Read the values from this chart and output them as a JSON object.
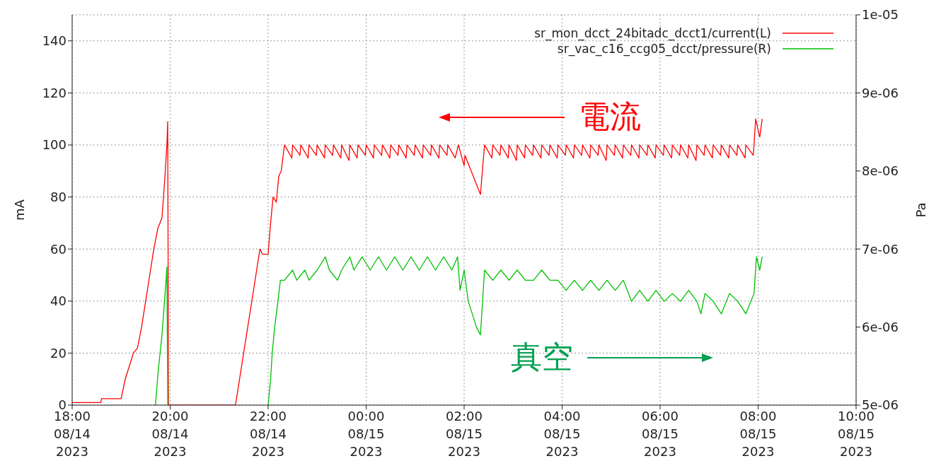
{
  "chart_data": {
    "type": "line",
    "xlabel": null,
    "ylabel": "mA",
    "y2label": "Pa",
    "annotations": [
      "電流",
      "真空"
    ],
    "xlim": [
      "2023-08-14T18:00",
      "2023-08-15T10:00"
    ],
    "xticks": [
      {
        "value": "2023-08-14T18:00",
        "label": "18:00\n08/14\n2023"
      },
      {
        "value": "2023-08-14T20:00",
        "label": "20:00\n08/14\n2023"
      },
      {
        "value": "2023-08-14T22:00",
        "label": "22:00\n08/14\n2023"
      },
      {
        "value": "2023-08-15T00:00",
        "label": "00:00\n08/15\n2023"
      },
      {
        "value": "2023-08-15T02:00",
        "label": "02:00\n08/15\n2023"
      },
      {
        "value": "2023-08-15T04:00",
        "label": "04:00\n08/15\n2023"
      },
      {
        "value": "2023-08-15T06:00",
        "label": "06:00\n08/15\n2023"
      },
      {
        "value": "2023-08-15T08:00",
        "label": "08:00\n08/15\n2023"
      },
      {
        "value": "2023-08-15T10:00",
        "label": "10:00\n08/15\n2023"
      }
    ],
    "ylim": [
      0,
      150
    ],
    "yticks": [
      0,
      20,
      40,
      60,
      80,
      100,
      120,
      140
    ],
    "y2lim": [
      5e-06,
      1e-05
    ],
    "y2ticks": [
      {
        "value": 5e-06,
        "label": "5e-06"
      },
      {
        "value": 6e-06,
        "label": "6e-06"
      },
      {
        "value": 7e-06,
        "label": "7e-06"
      },
      {
        "value": 8e-06,
        "label": "8e-06"
      },
      {
        "value": 9e-06,
        "label": "9e-06"
      },
      {
        "value": 1e-05,
        "label": "1e-05"
      }
    ],
    "grid": true,
    "legend": "top right",
    "marker": "none",
    "line_style": "solid",
    "series": [
      {
        "name": "sr_mon_dcct_24bitadc_dcct1/current(L)",
        "color": "#ff0000",
        "x": [
          "2023-08-14T18:00",
          "2023-08-14T18:35",
          "2023-08-14T18:36",
          "2023-08-14T19:00",
          "2023-08-14T19:05",
          "2023-08-14T19:10",
          "2023-08-14T19:15",
          "2023-08-14T19:20",
          "2023-08-14T19:25",
          "2023-08-14T19:30",
          "2023-08-14T19:35",
          "2023-08-14T19:40",
          "2023-08-14T19:45",
          "2023-08-14T19:50",
          "2023-08-14T19:53",
          "2023-08-14T19:56",
          "2023-08-14T19:57",
          "2023-08-14T19:58",
          "2023-08-14T21:20",
          "2023-08-14T21:25",
          "2023-08-14T21:30",
          "2023-08-14T21:35",
          "2023-08-14T21:40",
          "2023-08-14T21:45",
          "2023-08-14T21:50",
          "2023-08-14T21:53",
          "2023-08-14T22:00",
          "2023-08-14T22:03",
          "2023-08-14T22:06",
          "2023-08-14T22:10",
          "2023-08-14T22:13",
          "2023-08-14T22:16",
          "2023-08-14T22:20",
          "2023-08-14T22:29",
          "2023-08-14T22:30",
          "2023-08-14T22:39",
          "2023-08-14T22:40",
          "2023-08-14T22:49",
          "2023-08-14T22:50",
          "2023-08-14T22:59",
          "2023-08-14T23:00",
          "2023-08-14T23:09",
          "2023-08-14T23:10",
          "2023-08-14T23:19",
          "2023-08-14T23:20",
          "2023-08-14T23:29",
          "2023-08-14T23:30",
          "2023-08-14T23:39",
          "2023-08-14T23:40",
          "2023-08-14T23:49",
          "2023-08-14T23:50",
          "2023-08-14T23:59",
          "2023-08-15T00:00",
          "2023-08-15T00:09",
          "2023-08-15T00:10",
          "2023-08-15T00:19",
          "2023-08-15T00:20",
          "2023-08-15T00:29",
          "2023-08-15T00:30",
          "2023-08-15T00:39",
          "2023-08-15T00:40",
          "2023-08-15T00:49",
          "2023-08-15T00:50",
          "2023-08-15T00:59",
          "2023-08-15T01:00",
          "2023-08-15T01:09",
          "2023-08-15T01:10",
          "2023-08-15T01:19",
          "2023-08-15T01:20",
          "2023-08-15T01:29",
          "2023-08-15T01:30",
          "2023-08-15T01:39",
          "2023-08-15T01:40",
          "2023-08-15T01:49",
          "2023-08-15T01:53",
          "2023-08-15T02:00",
          "2023-08-15T02:01",
          "2023-08-15T02:20",
          "2023-08-15T02:25",
          "2023-08-15T02:34",
          "2023-08-15T02:35",
          "2023-08-15T02:44",
          "2023-08-15T02:45",
          "2023-08-15T02:54",
          "2023-08-15T02:55",
          "2023-08-15T03:04",
          "2023-08-15T03:05",
          "2023-08-15T03:14",
          "2023-08-15T03:15",
          "2023-08-15T03:24",
          "2023-08-15T03:25",
          "2023-08-15T03:34",
          "2023-08-15T03:35",
          "2023-08-15T03:44",
          "2023-08-15T03:45",
          "2023-08-15T03:54",
          "2023-08-15T03:55",
          "2023-08-15T04:04",
          "2023-08-15T04:05",
          "2023-08-15T04:14",
          "2023-08-15T04:15",
          "2023-08-15T04:24",
          "2023-08-15T04:25",
          "2023-08-15T04:34",
          "2023-08-15T04:35",
          "2023-08-15T04:44",
          "2023-08-15T04:45",
          "2023-08-15T04:54",
          "2023-08-15T04:55",
          "2023-08-15T05:04",
          "2023-08-15T05:05",
          "2023-08-15T05:14",
          "2023-08-15T05:15",
          "2023-08-15T05:24",
          "2023-08-15T05:25",
          "2023-08-15T05:34",
          "2023-08-15T05:35",
          "2023-08-15T05:44",
          "2023-08-15T05:45",
          "2023-08-15T05:54",
          "2023-08-15T05:55",
          "2023-08-15T06:04",
          "2023-08-15T06:05",
          "2023-08-15T06:14",
          "2023-08-15T06:15",
          "2023-08-15T06:24",
          "2023-08-15T06:25",
          "2023-08-15T06:34",
          "2023-08-15T06:35",
          "2023-08-15T06:44",
          "2023-08-15T06:45",
          "2023-08-15T06:54",
          "2023-08-15T06:55",
          "2023-08-15T07:04",
          "2023-08-15T07:05",
          "2023-08-15T07:14",
          "2023-08-15T07:15",
          "2023-08-15T07:24",
          "2023-08-15T07:25",
          "2023-08-15T07:34",
          "2023-08-15T07:35",
          "2023-08-15T07:44",
          "2023-08-15T07:45",
          "2023-08-15T07:54",
          "2023-08-15T07:55",
          "2023-08-15T07:57",
          "2023-08-15T08:02",
          "2023-08-15T08:05"
        ],
        "values": [
          1,
          1,
          2.5,
          2.5,
          10,
          15,
          20,
          22,
          30,
          40,
          50,
          60,
          68,
          72,
          85,
          100,
          109,
          0,
          0,
          10,
          20,
          30,
          40,
          50,
          60,
          58,
          58,
          70,
          80,
          78,
          88,
          90,
          100,
          95,
          100,
          96,
          100,
          95,
          100,
          96,
          100,
          95,
          100,
          96,
          100,
          95,
          100,
          94,
          100,
          95,
          100,
          96,
          100,
          95,
          100,
          96,
          100,
          95,
          100,
          96,
          100,
          95,
          100,
          96,
          100,
          95,
          100,
          96,
          100,
          95,
          100,
          96,
          100,
          95,
          100,
          92,
          96,
          81,
          100,
          95,
          100,
          96,
          100,
          95,
          100,
          94,
          100,
          95,
          100,
          96,
          100,
          95,
          100,
          96,
          100,
          95,
          100,
          96,
          100,
          95,
          100,
          96,
          100,
          95,
          100,
          96,
          100,
          94,
          100,
          96,
          100,
          95,
          100,
          96,
          100,
          95,
          100,
          96,
          100,
          95,
          100,
          96,
          100,
          95,
          100,
          96,
          100,
          95,
          100,
          94,
          100,
          96,
          100,
          95,
          100,
          96,
          100,
          95,
          100,
          96,
          100,
          95,
          100,
          96,
          100,
          110,
          103,
          110
        ]
      },
      {
        "name": "sr_vac_c16_ccg05_dcct/pressure(R)",
        "color": "#00c000",
        "axis": "y2",
        "x": [
          "2023-08-14T19:42",
          "2023-08-14T19:45",
          "2023-08-14T19:50",
          "2023-08-14T19:55",
          "2023-08-14T19:56",
          "2023-08-14T19:57",
          "2023-08-14T19:58",
          "2023-08-14T22:00",
          "2023-08-14T22:03",
          "2023-08-14T22:05",
          "2023-08-14T22:08",
          "2023-08-14T22:12",
          "2023-08-14T22:15",
          "2023-08-14T22:20",
          "2023-08-14T22:30",
          "2023-08-14T22:35",
          "2023-08-14T22:45",
          "2023-08-14T22:50",
          "2023-08-14T23:00",
          "2023-08-14T23:10",
          "2023-08-14T23:15",
          "2023-08-14T23:25",
          "2023-08-14T23:30",
          "2023-08-14T23:40",
          "2023-08-14T23:45",
          "2023-08-14T23:55",
          "2023-08-15T00:05",
          "2023-08-15T00:15",
          "2023-08-15T00:25",
          "2023-08-15T00:35",
          "2023-08-15T00:45",
          "2023-08-15T00:55",
          "2023-08-15T01:05",
          "2023-08-15T01:15",
          "2023-08-15T01:25",
          "2023-08-15T01:35",
          "2023-08-15T01:45",
          "2023-08-15T01:52",
          "2023-08-15T01:55",
          "2023-08-15T02:00",
          "2023-08-15T02:05",
          "2023-08-15T02:10",
          "2023-08-15T02:15",
          "2023-08-15T02:20",
          "2023-08-15T02:25",
          "2023-08-15T02:35",
          "2023-08-15T02:45",
          "2023-08-15T02:55",
          "2023-08-15T03:05",
          "2023-08-15T03:15",
          "2023-08-15T03:25",
          "2023-08-15T03:35",
          "2023-08-15T03:45",
          "2023-08-15T03:55",
          "2023-08-15T04:05",
          "2023-08-15T04:15",
          "2023-08-15T04:25",
          "2023-08-15T04:35",
          "2023-08-15T04:45",
          "2023-08-15T04:55",
          "2023-08-15T05:05",
          "2023-08-15T05:15",
          "2023-08-15T05:25",
          "2023-08-15T05:35",
          "2023-08-15T05:45",
          "2023-08-15T05:55",
          "2023-08-15T06:05",
          "2023-08-15T06:15",
          "2023-08-15T06:25",
          "2023-08-15T06:35",
          "2023-08-15T06:45",
          "2023-08-15T06:50",
          "2023-08-15T06:55",
          "2023-08-15T07:05",
          "2023-08-15T07:15",
          "2023-08-15T07:25",
          "2023-08-15T07:35",
          "2023-08-15T07:45",
          "2023-08-15T07:55",
          "2023-08-15T07:58",
          "2023-08-15T08:02",
          "2023-08-15T08:05"
        ],
        "values": [
          5e-06,
          5.4e-06,
          5.9e-06,
          6.6e-06,
          6.77e-06,
          5e-06,
          null,
          5e-06,
          5.33e-06,
          5.67e-06,
          6e-06,
          6.33e-06,
          6.6e-06,
          6.6e-06,
          6.73e-06,
          6.6e-06,
          6.73e-06,
          6.6e-06,
          6.73e-06,
          6.9e-06,
          6.73e-06,
          6.6e-06,
          6.73e-06,
          6.9e-06,
          6.73e-06,
          6.9e-06,
          6.73e-06,
          6.9e-06,
          6.73e-06,
          6.9e-06,
          6.73e-06,
          6.9e-06,
          6.73e-06,
          6.9e-06,
          6.73e-06,
          6.9e-06,
          6.73e-06,
          6.9e-06,
          6.47e-06,
          6.73e-06,
          6.33e-06,
          6.17e-06,
          6e-06,
          5.9e-06,
          6.73e-06,
          6.6e-06,
          6.73e-06,
          6.6e-06,
          6.73e-06,
          6.6e-06,
          6.6e-06,
          6.73e-06,
          6.6e-06,
          6.6e-06,
          6.47e-06,
          6.6e-06,
          6.47e-06,
          6.6e-06,
          6.47e-06,
          6.6e-06,
          6.47e-06,
          6.6e-06,
          6.33e-06,
          6.47e-06,
          6.33e-06,
          6.47e-06,
          6.33e-06,
          6.43e-06,
          6.33e-06,
          6.47e-06,
          6.33e-06,
          6.17e-06,
          6.43e-06,
          6.33e-06,
          6.17e-06,
          6.43e-06,
          6.33e-06,
          6.17e-06,
          6.43e-06,
          6.9e-06,
          6.73e-06,
          6.9e-06
        ]
      }
    ]
  }
}
